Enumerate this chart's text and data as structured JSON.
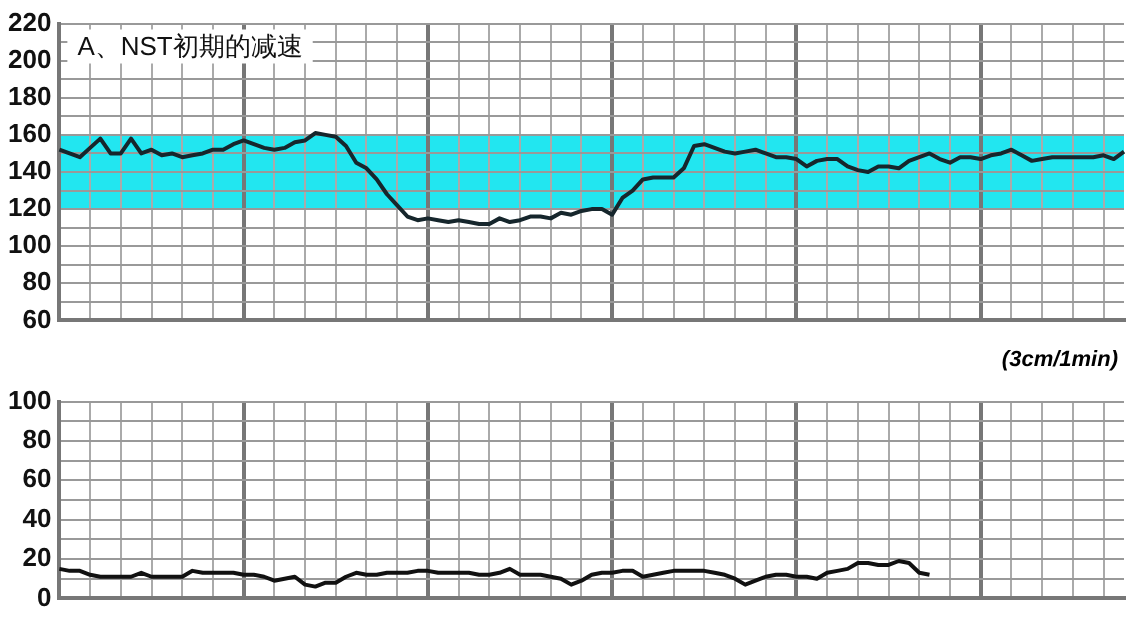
{
  "chart_data": [
    {
      "type": "line",
      "title": "A、NST初期的减速",
      "annotations": [
        "(3cm/1min)"
      ],
      "categories": [
        null,
        null,
        null,
        null,
        null,
        null,
        null,
        null,
        null,
        null,
        null,
        null,
        null,
        null,
        null,
        null,
        null,
        null,
        null,
        null,
        null,
        null,
        null,
        null,
        null,
        null,
        null,
        null,
        null,
        null,
        null,
        null,
        null,
        null,
        null,
        null,
        null,
        null,
        null,
        null,
        null,
        null,
        null,
        null,
        null,
        null,
        null,
        null,
        null,
        null,
        null,
        null,
        null,
        null,
        null,
        null,
        null,
        null,
        null,
        null,
        null,
        null,
        null,
        null,
        null,
        null,
        null,
        null,
        null,
        null,
        null,
        null,
        null,
        null,
        null,
        null,
        null,
        null,
        null,
        null,
        null,
        null,
        null,
        null,
        null,
        null,
        null,
        null,
        null,
        null,
        null,
        null,
        null,
        null,
        null,
        null,
        null,
        null,
        null,
        null,
        null,
        null,
        null,
        null,
        null
      ],
      "series": [
        {
          "color": "#16262c",
          "values": [
            152,
            150,
            148,
            153,
            158,
            150,
            150,
            158,
            150,
            152,
            149,
            150,
            148,
            149,
            150,
            152,
            152,
            155,
            157,
            155,
            153,
            152,
            153,
            156,
            157,
            161,
            160,
            159,
            154,
            145,
            142,
            136,
            128,
            122,
            116,
            114,
            115,
            114,
            113,
            114,
            113,
            112,
            112,
            115,
            113,
            114,
            116,
            116,
            115,
            118,
            117,
            119,
            120,
            120,
            117,
            126,
            130,
            136,
            137,
            137,
            137,
            142,
            154,
            155,
            153,
            151,
            150,
            151,
            152,
            150,
            148,
            148,
            147,
            143,
            146,
            147,
            147,
            143,
            141,
            140,
            143,
            143,
            142,
            146,
            148,
            150,
            147,
            145,
            148,
            148,
            147,
            149,
            150,
            152,
            149,
            146,
            147,
            148,
            148,
            148,
            148,
            148,
            149,
            147,
            151
          ]
        }
      ],
      "ylim": [
        60,
        220
      ],
      "yticks": [
        60,
        {
          "value": 70,
          "label": null
        },
        80,
        {
          "value": 90,
          "label": null
        },
        100,
        {
          "value": 110,
          "label": null
        },
        120,
        {
          "value": 130,
          "label": null
        },
        140,
        {
          "value": 150,
          "label": null
        },
        160,
        {
          "value": 170,
          "label": null
        },
        180,
        {
          "value": 190,
          "label": null
        },
        200,
        {
          "value": 210,
          "label": null
        },
        220
      ],
      "bands": [
        {
          "axis": "y",
          "from": 120,
          "to": 160,
          "color": "#22e6f0"
        }
      ],
      "grid": true,
      "tick_labels": "y",
      "legend": false
    },
    {
      "type": "line",
      "categories": [
        null,
        null,
        null,
        null,
        null,
        null,
        null,
        null,
        null,
        null,
        null,
        null,
        null,
        null,
        null,
        null,
        null,
        null,
        null,
        null,
        null,
        null,
        null,
        null,
        null,
        null,
        null,
        null,
        null,
        null,
        null,
        null,
        null,
        null,
        null,
        null,
        null,
        null,
        null,
        null,
        null,
        null,
        null,
        null,
        null,
        null,
        null,
        null,
        null,
        null,
        null,
        null,
        null,
        null,
        null,
        null,
        null,
        null,
        null,
        null,
        null,
        null,
        null,
        null,
        null,
        null,
        null,
        null,
        null,
        null,
        null,
        null,
        null,
        null,
        null,
        null,
        null,
        null,
        null,
        null,
        null,
        null,
        null,
        null,
        null,
        null,
        null,
        null,
        null,
        null,
        null,
        null,
        null,
        null,
        null,
        null,
        null,
        null,
        null,
        null,
        null,
        null,
        null,
        null,
        null
      ],
      "series": [
        {
          "color": "#111111",
          "values": [
            15,
            14,
            14,
            12,
            11,
            11,
            11,
            11,
            13,
            11,
            11,
            11,
            11,
            14,
            13,
            13,
            13,
            13,
            12,
            12,
            11,
            9,
            10,
            11,
            7,
            6,
            8,
            8,
            11,
            13,
            12,
            12,
            13,
            13,
            13,
            14,
            14,
            13,
            13,
            13,
            13,
            12,
            12,
            13,
            15,
            12,
            12,
            12,
            11,
            10,
            7,
            9,
            12,
            13,
            13,
            14,
            14,
            11,
            12,
            13,
            14,
            14,
            14,
            14,
            13,
            12,
            10,
            7,
            9,
            11,
            12,
            12,
            11,
            11,
            10,
            13,
            14,
            15,
            18,
            18,
            17,
            17,
            19,
            18,
            13,
            12,
            null,
            null,
            null,
            null,
            null,
            null,
            null,
            null,
            null,
            null,
            null,
            null,
            null,
            null,
            null,
            null,
            null,
            null,
            null
          ]
        }
      ],
      "ylim": [
        0,
        100
      ],
      "yticks": [
        0,
        {
          "value": 10,
          "label": null
        },
        20,
        {
          "value": 30,
          "label": null
        },
        40,
        {
          "value": 50,
          "label": null
        },
        60,
        {
          "value": 70,
          "label": null
        },
        80,
        {
          "value": 90,
          "label": null
        },
        100
      ],
      "grid": true,
      "tick_labels": "y",
      "legend": false
    }
  ]
}
